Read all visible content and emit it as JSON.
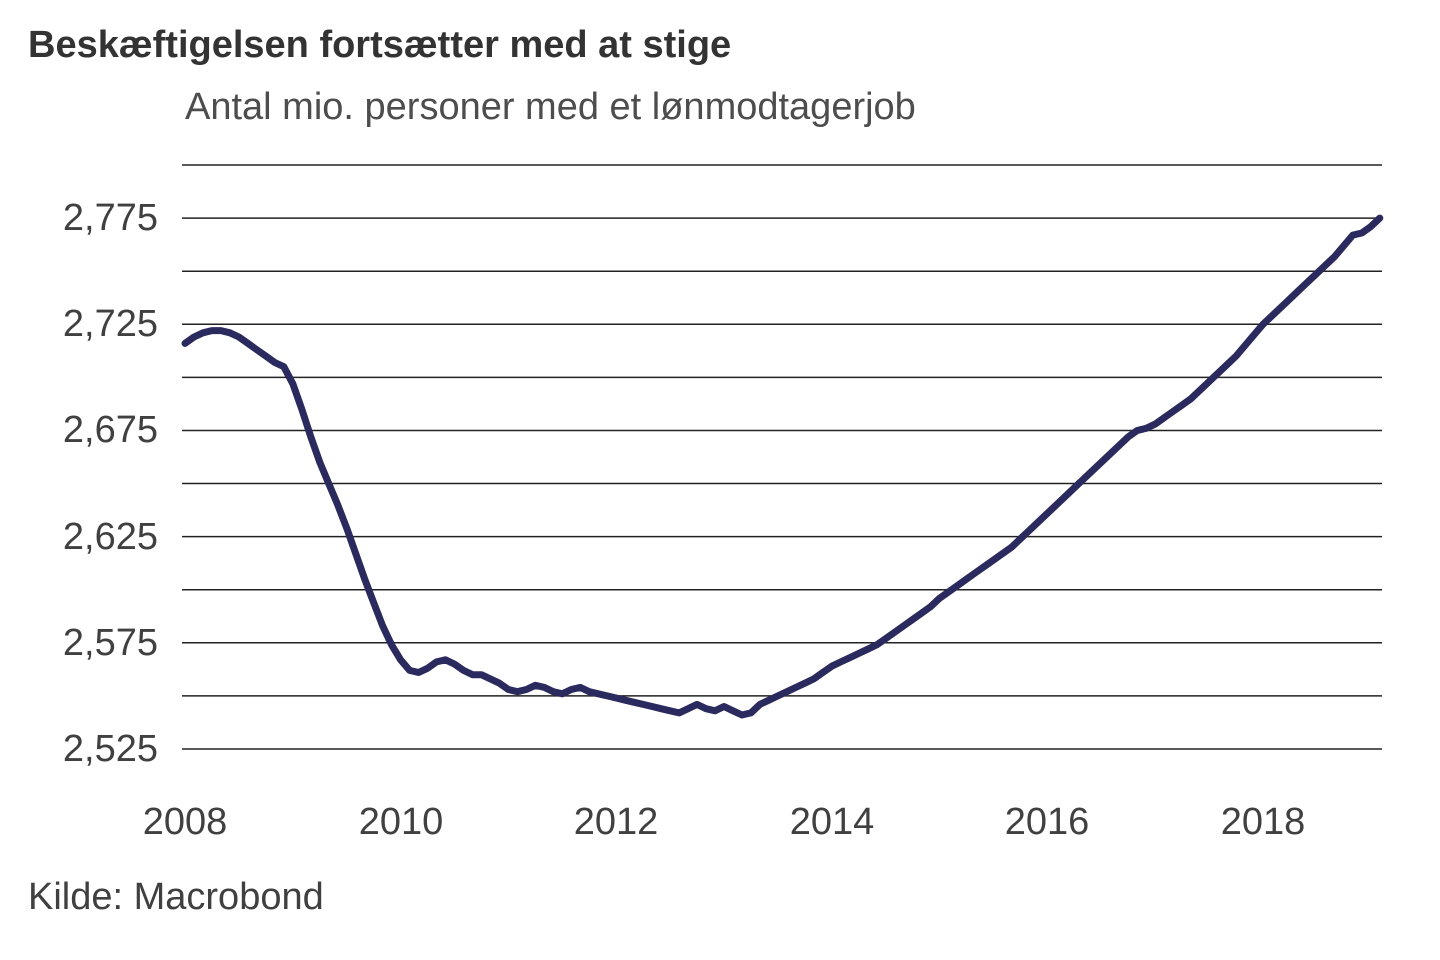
{
  "header": {
    "title": "Beskæftigelsen fortsætter med at stige",
    "subtitle": "Antal mio. personer med et lønmodtagerjob"
  },
  "footer": {
    "source": "Kilde: Macrobond"
  },
  "chart_data": {
    "type": "line",
    "title": "Beskæftigelsen fortsætter med at stige",
    "subtitle": "Antal mio. personer med et lønmodtagerjob",
    "source": "Kilde: Macrobond",
    "frequency": "monthly",
    "x_start_year": 2008,
    "x_start_month": 1,
    "x_end_year": 2019,
    "x_end_month": 2,
    "unit": "thousand persons (axis shown as mio. with Danish decimal comma)",
    "grid": "horizontal",
    "legend": "none",
    "ylim": [
      2525,
      2800
    ],
    "gridline_step": 25,
    "y_tick_values": [
      2775,
      2725,
      2675,
      2625,
      2575,
      2525
    ],
    "y_tick_labels": [
      "2,775",
      "2,725",
      "2,675",
      "2,625",
      "2,575",
      "2,525"
    ],
    "x_tick_years": [
      2008,
      2010,
      2012,
      2014,
      2016,
      2018
    ],
    "x_tick_labels": [
      "2008",
      "2010",
      "2012",
      "2014",
      "2016",
      "2018"
    ],
    "line_color": "#2b2a5e",
    "gridline_color": "#222222",
    "text_color": "#404040",
    "values": [
      2716,
      2719,
      2721,
      2722,
      2722,
      2721,
      2719,
      2716,
      2713,
      2710,
      2707,
      2705,
      2697,
      2685,
      2672,
      2660,
      2650,
      2640,
      2629,
      2617,
      2605,
      2594,
      2583,
      2574,
      2567,
      2562,
      2561,
      2563,
      2566,
      2567,
      2565,
      2562,
      2560,
      2560,
      2558,
      2556,
      2553,
      2552,
      2553,
      2555,
      2554,
      2552,
      2551,
      2553,
      2554,
      2552,
      2551,
      2550,
      2549,
      2548,
      2547,
      2546,
      2545,
      2544,
      2543,
      2542,
      2544,
      2546,
      2544,
      2543,
      2545,
      2543,
      2541,
      2542,
      2546,
      2548,
      2550,
      2552,
      2554,
      2556,
      2558,
      2561,
      2564,
      2566,
      2568,
      2570,
      2572,
      2574,
      2577,
      2580,
      2583,
      2586,
      2589,
      2592,
      2596,
      2599,
      2602,
      2605,
      2608,
      2611,
      2614,
      2617,
      2620,
      2624,
      2628,
      2632,
      2636,
      2640,
      2644,
      2648,
      2652,
      2656,
      2660,
      2664,
      2668,
      2672,
      2675,
      2676,
      2678,
      2681,
      2684,
      2687,
      2690,
      2694,
      2698,
      2702,
      2706,
      2710,
      2715,
      2720,
      2725,
      2729,
      2733,
      2737,
      2741,
      2745,
      2749,
      2753,
      2757,
      2762,
      2767,
      2768,
      2771,
      2775
    ]
  }
}
